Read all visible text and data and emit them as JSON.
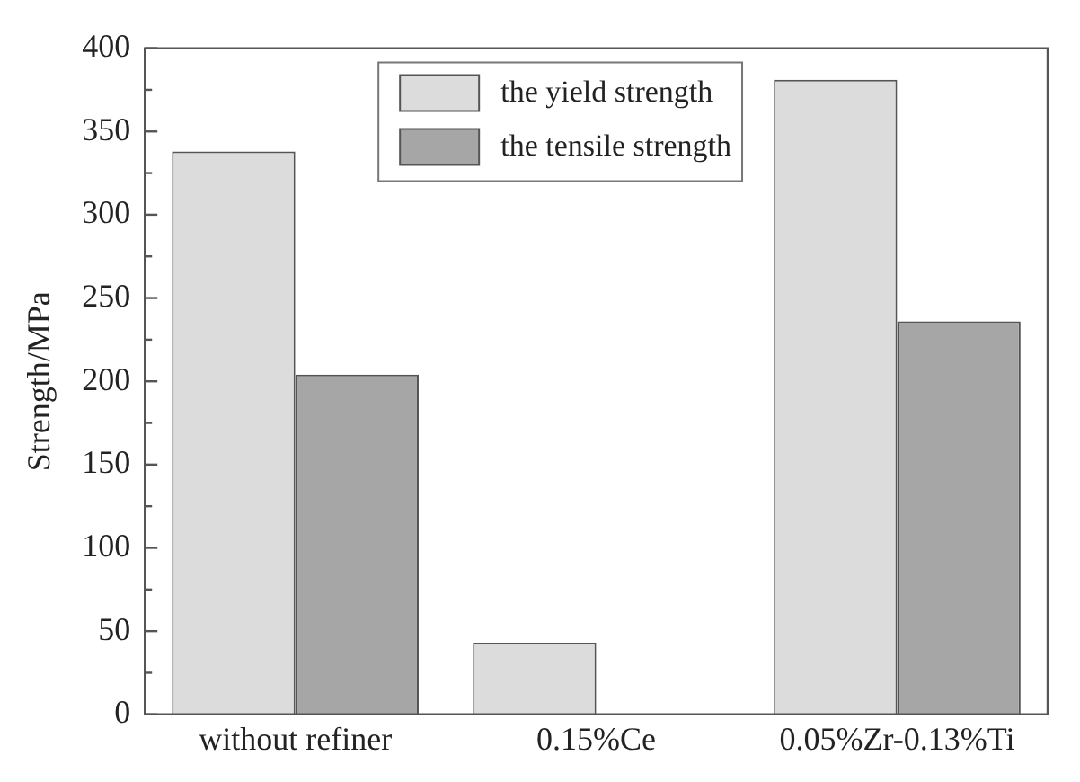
{
  "chart_data": {
    "type": "bar",
    "ylabel": "Strength/MPa",
    "categories": [
      "without refiner",
      "0.15%Ce",
      "0.05%Zr-0.13%Ti"
    ],
    "series": [
      {
        "name": "the yield strength",
        "color": "#dcdcdc",
        "values": [
          338,
          43,
          381
        ]
      },
      {
        "name": "the tensile strength",
        "color": "#a6a6a6",
        "values": [
          204,
          null,
          236
        ]
      }
    ],
    "ylim": [
      0,
      400
    ],
    "yticks": [
      0,
      {
        "value": 25,
        "label": null
      },
      50,
      {
        "value": 75,
        "label": null
      },
      100,
      {
        "value": 125,
        "label": null
      },
      150,
      {
        "value": 175,
        "label": null
      },
      200,
      {
        "value": 225,
        "label": null
      },
      250,
      {
        "value": 275,
        "label": null
      },
      300,
      {
        "value": 325,
        "label": null
      },
      350,
      {
        "value": 375,
        "label": null
      },
      400
    ],
    "grid": false,
    "legend": "top"
  }
}
